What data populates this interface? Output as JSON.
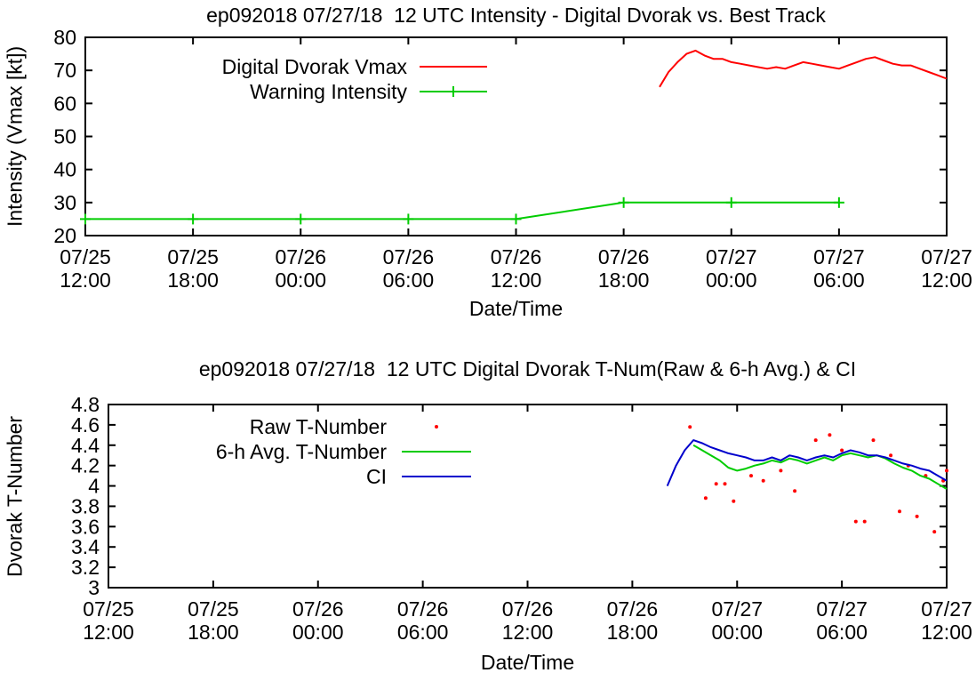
{
  "page": {
    "background": "#ffffff"
  },
  "colors": {
    "red": "#ff0000",
    "green": "#00cc00",
    "blue": "#0000cc",
    "axis": "#000000"
  },
  "chart_data": [
    {
      "type": "line",
      "title": "ep092018 07/27/18  12 UTC Intensity - Digital Dvorak vs. Best Track",
      "xlabel": "Date/Time",
      "ylabel": "Intensity (Vmax [kt])",
      "ylim": [
        20,
        80
      ],
      "xlim": [
        0,
        48
      ],
      "grid": false,
      "legend_position": "top-left-inside",
      "yticks": [
        {
          "v": 20,
          "label": "20"
        },
        {
          "v": 30,
          "label": "30"
        },
        {
          "v": 40,
          "label": "40"
        },
        {
          "v": 50,
          "label": "50"
        },
        {
          "v": 60,
          "label": "60"
        },
        {
          "v": 70,
          "label": "70"
        },
        {
          "v": 80,
          "label": "80"
        }
      ],
      "xticks": [
        {
          "v": 0,
          "l1": "07/25",
          "l2": "12:00"
        },
        {
          "v": 6,
          "l1": "07/25",
          "l2": "18:00"
        },
        {
          "v": 12,
          "l1": "07/26",
          "l2": "00:00"
        },
        {
          "v": 18,
          "l1": "07/26",
          "l2": "06:00"
        },
        {
          "v": 24,
          "l1": "07/26",
          "l2": "12:00"
        },
        {
          "v": 30,
          "l1": "07/26",
          "l2": "18:00"
        },
        {
          "v": 36,
          "l1": "07/27",
          "l2": "00:00"
        },
        {
          "v": 42,
          "l1": "07/27",
          "l2": "06:00"
        },
        {
          "v": 48,
          "l1": "07/27",
          "l2": "12:00"
        }
      ],
      "series": [
        {
          "name": "Digital Dvorak Vmax",
          "color": "#ff0000",
          "style": "line",
          "x": [
            32,
            32.5,
            33,
            33.5,
            34,
            34.5,
            35,
            35.5,
            36,
            36.5,
            37,
            37.5,
            38,
            38.5,
            39,
            39.5,
            40,
            40.5,
            41,
            41.5,
            42,
            42.5,
            43,
            43.5,
            44,
            44.5,
            45,
            45.5,
            46,
            46.5,
            47,
            47.5,
            48
          ],
          "y": [
            65,
            69.5,
            72.5,
            75,
            76,
            74.5,
            73.5,
            73.5,
            72.5,
            72,
            71.5,
            71,
            70.5,
            71,
            70.5,
            71.5,
            72.5,
            72,
            71.5,
            71,
            70.5,
            71.5,
            72.5,
            73.5,
            74,
            73,
            72,
            71.5,
            71.5,
            70.5,
            69.5,
            68.5,
            67.5
          ]
        },
        {
          "name": "Warning Intensity",
          "color": "#00cc00",
          "style": "line-plus",
          "x": [
            0,
            6,
            12,
            18,
            24,
            30,
            36,
            42
          ],
          "y": [
            25,
            25,
            25,
            25,
            25,
            30,
            30,
            30
          ]
        }
      ]
    },
    {
      "type": "line",
      "title": "ep092018 07/27/18  12 UTC Digital Dvorak T-Num(Raw & 6-h Avg.) & CI",
      "xlabel": "Date/Time",
      "ylabel": "Dvorak T-Number",
      "ylim": [
        3,
        4.8
      ],
      "xlim": [
        0,
        48
      ],
      "grid": false,
      "legend_position": "top-left-inside",
      "yticks": [
        {
          "v": 3,
          "label": "3"
        },
        {
          "v": 3.2,
          "label": "3.2"
        },
        {
          "v": 3.4,
          "label": "3.4"
        },
        {
          "v": 3.6,
          "label": "3.6"
        },
        {
          "v": 3.8,
          "label": "3.8"
        },
        {
          "v": 4,
          "label": "4"
        },
        {
          "v": 4.2,
          "label": "4.2"
        },
        {
          "v": 4.4,
          "label": "4.4"
        },
        {
          "v": 4.6,
          "label": "4.6"
        },
        {
          "v": 4.8,
          "label": "4.8"
        }
      ],
      "xticks": [
        {
          "v": 0,
          "l1": "07/25",
          "l2": "12:00"
        },
        {
          "v": 6,
          "l1": "07/25",
          "l2": "18:00"
        },
        {
          "v": 12,
          "l1": "07/26",
          "l2": "00:00"
        },
        {
          "v": 18,
          "l1": "07/26",
          "l2": "06:00"
        },
        {
          "v": 24,
          "l1": "07/26",
          "l2": "12:00"
        },
        {
          "v": 30,
          "l1": "07/26",
          "l2": "18:00"
        },
        {
          "v": 36,
          "l1": "07/27",
          "l2": "00:00"
        },
        {
          "v": 42,
          "l1": "07/27",
          "l2": "06:00"
        },
        {
          "v": 48,
          "l1": "07/27",
          "l2": "12:00"
        }
      ],
      "series": [
        {
          "name": "Raw T-Number",
          "color": "#ff0000",
          "style": "dots",
          "x": [
            33.3,
            34.2,
            34.8,
            35.3,
            35.8,
            36.8,
            37.5,
            38.5,
            39.3,
            40.5,
            41.3,
            42,
            42.8,
            43.3,
            43.8,
            44.8,
            45.3,
            45.8,
            46.3,
            46.8,
            47.3,
            47.8,
            48
          ],
          "y": [
            4.58,
            3.88,
            4.02,
            4.02,
            3.85,
            4.1,
            4.05,
            4.15,
            3.95,
            4.45,
            4.5,
            4.35,
            3.65,
            3.65,
            4.45,
            4.3,
            3.75,
            4.2,
            3.7,
            4.1,
            3.55,
            4.05,
            4.15
          ]
        },
        {
          "name": "6-h Avg. T-Number",
          "color": "#00cc00",
          "style": "line",
          "x": [
            33.5,
            34,
            34.5,
            35,
            35.5,
            36,
            36.5,
            37,
            37.5,
            38,
            38.5,
            39,
            39.5,
            40,
            40.5,
            41,
            41.5,
            42,
            42.5,
            43,
            43.5,
            44,
            44.5,
            45,
            45.5,
            46,
            46.5,
            47,
            47.5,
            48
          ],
          "y": [
            4.4,
            4.35,
            4.3,
            4.25,
            4.18,
            4.15,
            4.17,
            4.2,
            4.22,
            4.25,
            4.23,
            4.27,
            4.25,
            4.22,
            4.25,
            4.28,
            4.25,
            4.3,
            4.32,
            4.3,
            4.28,
            4.3,
            4.27,
            4.22,
            4.18,
            4.15,
            4.1,
            4.07,
            4.02,
            3.97
          ]
        },
        {
          "name": "CI",
          "color": "#0000cc",
          "style": "line",
          "x": [
            32,
            32.5,
            33,
            33.5,
            34,
            34.5,
            35,
            35.5,
            36,
            36.5,
            37,
            37.5,
            38,
            38.5,
            39,
            39.5,
            40,
            40.5,
            41,
            41.5,
            42,
            42.5,
            43,
            43.5,
            44,
            44.5,
            45,
            45.5,
            46,
            46.5,
            47,
            47.5,
            48
          ],
          "y": [
            4.0,
            4.2,
            4.35,
            4.45,
            4.42,
            4.38,
            4.35,
            4.32,
            4.3,
            4.28,
            4.25,
            4.25,
            4.28,
            4.25,
            4.3,
            4.28,
            4.25,
            4.28,
            4.3,
            4.28,
            4.32,
            4.35,
            4.33,
            4.3,
            4.3,
            4.28,
            4.25,
            4.22,
            4.2,
            4.17,
            4.15,
            4.1,
            4.05
          ]
        }
      ]
    }
  ]
}
